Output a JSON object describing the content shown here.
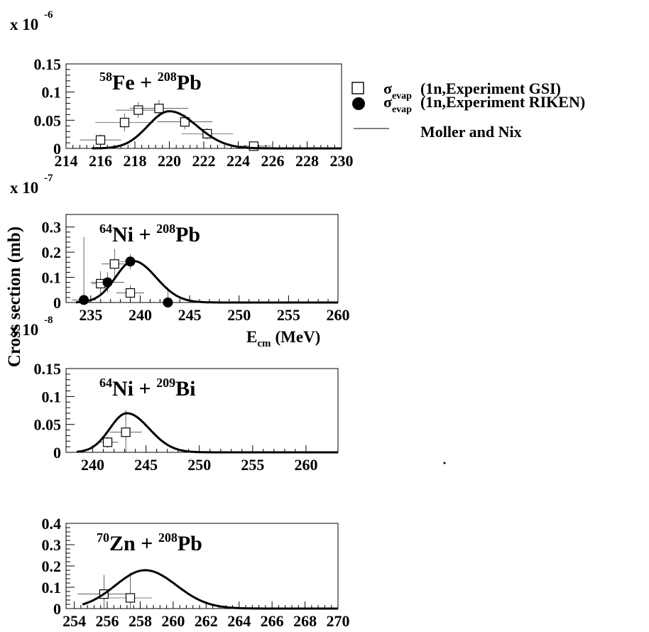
{
  "figure": {
    "ylabel": "Cross section (mb)",
    "xlabel_main": "E",
    "xlabel_sub": "cm",
    "xlabel_unit": "(MeV)"
  },
  "legend": {
    "placement": "top-right",
    "entries": [
      {
        "symbol": "open-square",
        "label_greek": "σ",
        "label_sub": "evap",
        "label_text": "(1n,Experiment GSI)"
      },
      {
        "symbol": "filled-circle",
        "label_greek": "σ",
        "label_sub": "evap",
        "label_text": "(1n,Experiment RIKEN)"
      },
      {
        "symbol": "line",
        "label_text": "Moller and Nix"
      }
    ]
  },
  "chart_data": [
    {
      "type": "scatter",
      "reaction": {
        "a1": "58",
        "e1": "Fe",
        "a2": "208",
        "e2": "Pb"
      },
      "scale_base": "x 10",
      "scale_exp": "-6",
      "xlim": [
        214,
        230
      ],
      "ylim": [
        0,
        0.15
      ],
      "xticks": [
        214,
        216,
        218,
        220,
        222,
        224,
        226,
        228,
        230
      ],
      "xtick_labels": [
        "214",
        "216",
        "218",
        "220",
        "222",
        "224",
        "226",
        "228",
        "230"
      ],
      "yticks": [
        0,
        0.05,
        0.1,
        0.15
      ],
      "ytick_labels": [
        "0",
        "0.05",
        "0.1",
        "0.15"
      ],
      "series": [
        {
          "name": "σevap (1n,Experiment GSI)",
          "marker": "open-square",
          "points": [
            {
              "x": 216.0,
              "y": 0.015,
              "xerr": 1.2,
              "yerr": 0.01
            },
            {
              "x": 217.4,
              "y": 0.046,
              "xerr": 1.7,
              "yerr": 0.016
            },
            {
              "x": 218.2,
              "y": 0.068,
              "xerr": 1.3,
              "yerr": 0.014
            },
            {
              "x": 219.4,
              "y": 0.071,
              "xerr": 1.7,
              "yerr": 0.015
            },
            {
              "x": 220.9,
              "y": 0.047,
              "xerr": 1.6,
              "yerr": 0.013
            },
            {
              "x": 222.2,
              "y": 0.026,
              "xerr": 1.5,
              "yerr": 0.01
            },
            {
              "x": 224.9,
              "y": 0.004,
              "xerr": 1.0,
              "yerr": 0.004
            }
          ]
        },
        {
          "name": "Moller and Nix",
          "marker": "line",
          "curve": {
            "peak_x": 220.0,
            "peak_y": 0.066,
            "sigma_left": 1.25,
            "sigma_right": 1.6,
            "x_from": 215.5,
            "x_to": 230
          }
        }
      ]
    },
    {
      "type": "scatter",
      "reaction": {
        "a1": "64",
        "e1": "Ni",
        "a2": "208",
        "e2": "Pb"
      },
      "scale_base": "x 10",
      "scale_exp": "-7",
      "xlim": [
        232.5,
        260
      ],
      "ylim": [
        0,
        0.35
      ],
      "xticks": [
        235,
        240,
        245,
        250,
        255,
        260
      ],
      "xtick_labels": [
        "235",
        "240",
        "245",
        "250",
        "255",
        "260"
      ],
      "yticks": [
        0,
        0.1,
        0.2,
        0.3
      ],
      "ytick_labels": [
        "0",
        "0.1",
        "0.2",
        "0.3"
      ],
      "series": [
        {
          "name": "σevap (1n,Experiment GSI)",
          "marker": "open-square",
          "points": [
            {
              "x": 236.0,
              "y": 0.075,
              "xerr": 0.9,
              "yerr": 0.05
            },
            {
              "x": 237.4,
              "y": 0.153,
              "xerr": 1.3,
              "yerr": 0.06
            },
            {
              "x": 239.0,
              "y": 0.038,
              "xerr": 1.4,
              "yerr": 0.03
            }
          ]
        },
        {
          "name": "σevap (1n,Experiment RIKEN)",
          "marker": "filled-circle",
          "points": [
            {
              "x": 234.3,
              "y": 0.01,
              "xerr": 1.2,
              "yerr": 0.25
            },
            {
              "x": 236.7,
              "y": 0.08,
              "xerr": 1.7,
              "yerr": 0.04
            },
            {
              "x": 239.0,
              "y": 0.163,
              "xerr": 1.0,
              "yerr": 0.03
            },
            {
              "x": 242.8,
              "y": 0.0,
              "xerr": 1.0,
              "yerr": 0.06
            }
          ]
        },
        {
          "name": "Moller and Nix",
          "marker": "line",
          "curve": {
            "peak_x": 239.3,
            "peak_y": 0.165,
            "sigma_left": 1.8,
            "sigma_right": 2.3,
            "x_from": 233.5,
            "x_to": 260
          }
        }
      ]
    },
    {
      "type": "scatter",
      "reaction": {
        "a1": "64",
        "e1": "Ni",
        "a2": "209",
        "e2": "Bi"
      },
      "scale_base": "x 10",
      "scale_exp": "-8",
      "xlim": [
        237.5,
        263
      ],
      "ylim": [
        0,
        0.15
      ],
      "xticks": [
        240,
        245,
        250,
        255,
        260
      ],
      "xtick_labels": [
        "240",
        "245",
        "250",
        "255",
        "260"
      ],
      "yticks": [
        0,
        0.05,
        0.1,
        0.15
      ],
      "ytick_labels": [
        "0",
        "0.05",
        "0.1",
        "0.15"
      ],
      "series": [
        {
          "name": "σevap (1n,Experiment GSI)",
          "marker": "open-square",
          "points": [
            {
              "x": 241.4,
              "y": 0.018,
              "xerr": 1.0,
              "yerr": 0.01
            },
            {
              "x": 243.1,
              "y": 0.036,
              "xerr": 1.5,
              "yerr": 0.04
            }
          ]
        },
        {
          "name": "Moller and Nix",
          "marker": "line",
          "curve": {
            "peak_x": 243.2,
            "peak_y": 0.07,
            "sigma_left": 1.6,
            "sigma_right": 2.1,
            "x_from": 238.5,
            "x_to": 263
          }
        }
      ]
    },
    {
      "type": "scatter",
      "reaction": {
        "a1": "70",
        "e1": "Zn",
        "a2": "208",
        "e2": "Pb"
      },
      "scale_base": "",
      "scale_exp": "",
      "xlim": [
        253.5,
        270
      ],
      "ylim": [
        0,
        0.4
      ],
      "xticks": [
        254,
        256,
        258,
        260,
        262,
        264,
        266,
        268,
        270
      ],
      "xtick_labels": [
        "254",
        "256",
        "258",
        "260",
        "262",
        "264",
        "266",
        "268",
        "270"
      ],
      "yticks": [
        0,
        0.1,
        0.2,
        0.3,
        0.4
      ],
      "ytick_labels": [
        "0",
        "0.1",
        "0.2",
        "0.3",
        "0.4"
      ],
      "series": [
        {
          "name": "σevap (1n,Experiment GSI)",
          "marker": "open-square",
          "points": [
            {
              "x": 255.8,
              "y": 0.068,
              "xerr": 1.6,
              "yerr": 0.09
            },
            {
              "x": 257.4,
              "y": 0.05,
              "xerr": 1.3,
              "yerr": 0.12
            }
          ]
        },
        {
          "name": "Moller and Nix",
          "marker": "line",
          "curve": {
            "peak_x": 258.3,
            "peak_y": 0.18,
            "sigma_left": 1.8,
            "sigma_right": 1.9,
            "x_from": 254.5,
            "x_to": 270
          }
        }
      ]
    }
  ]
}
